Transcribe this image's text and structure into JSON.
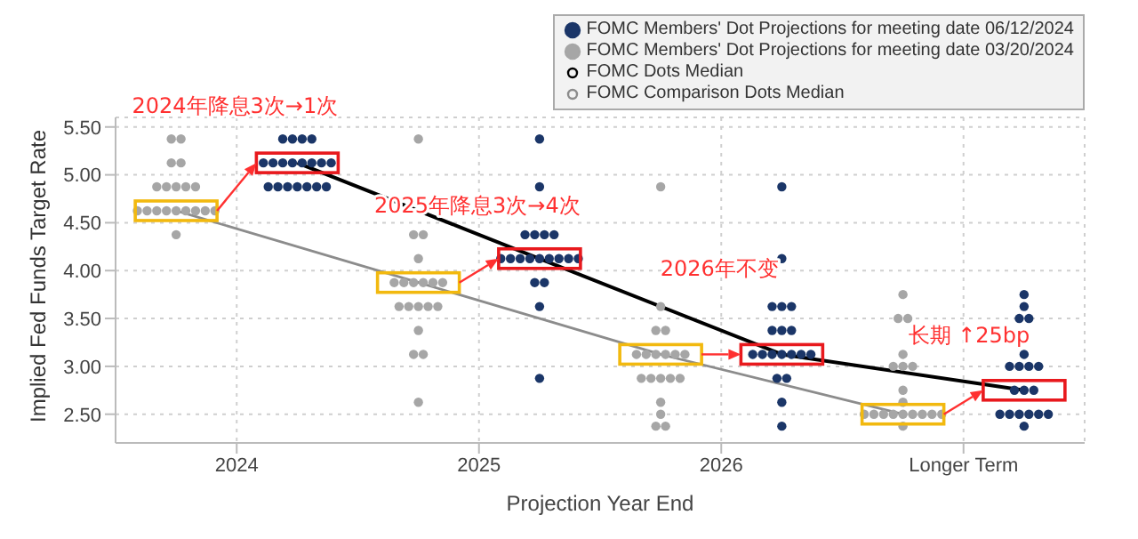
{
  "chart_data": {
    "type": "scatter",
    "xlabel": "Projection Year End",
    "ylabel": "Implied Fed Funds Target Rate",
    "xlim": [
      2023.5,
      2027.5
    ],
    "ylim": [
      2.2,
      5.6
    ],
    "xticks": [
      2024,
      2025,
      2026,
      {
        "value": 2027,
        "label": "Longer Term"
      }
    ],
    "yticks": [
      {
        "value": 2.5,
        "label": "2.50"
      },
      {
        "value": 3,
        "label": "3.00"
      },
      {
        "value": 3.5,
        "label": "3.50"
      },
      {
        "value": 4,
        "label": "4.00"
      },
      {
        "value": 4.5,
        "label": "4.50"
      },
      {
        "value": 5,
        "label": "5.00"
      },
      {
        "value": 5.5,
        "label": "5.50"
      }
    ],
    "grid": true,
    "legend": "top right",
    "marker": "circle",
    "annotations": [
      "2024年降息3次→1次",
      "2025年降息3次→4次",
      "2026年不变",
      "长期 ↑25bp"
    ],
    "series": [
      {
        "name": "FOMC Members' Dot Projections for meeting date 06/12/2024",
        "color": "#1b3668",
        "x": [
          2024.19,
          2024.23,
          2024.27,
          2024.31,
          2024.11,
          2024.15,
          2024.19,
          2024.23,
          2024.27,
          2024.31,
          2024.35,
          2024.39,
          2024.13,
          2024.17,
          2024.21,
          2024.25,
          2024.29,
          2024.33,
          2024.37,
          2025.25,
          2025.25,
          2025.19,
          2025.23,
          2025.27,
          2025.31,
          2025.09,
          2025.13,
          2025.17,
          2025.21,
          2025.25,
          2025.29,
          2025.33,
          2025.37,
          2025.41,
          2025.23,
          2025.27,
          2025.25,
          2025.25,
          2026.25,
          2026.25,
          2026.21,
          2026.25,
          2026.29,
          2026.21,
          2026.25,
          2026.29,
          2026.13,
          2026.17,
          2026.21,
          2026.25,
          2026.29,
          2026.33,
          2026.37,
          2026.23,
          2026.27,
          2026.25,
          2026.25,
          2027.25,
          2027.25,
          2027.23,
          2027.27,
          2027.25,
          2027.19,
          2027.23,
          2027.27,
          2027.31,
          2027.21,
          2027.25,
          2027.29,
          2027.15,
          2027.19,
          2027.23,
          2027.27,
          2027.31,
          2027.35,
          2027.25
        ],
        "values": [
          5.375,
          5.375,
          5.375,
          5.375,
          5.125,
          5.125,
          5.125,
          5.125,
          5.125,
          5.125,
          5.125,
          5.125,
          4.875,
          4.875,
          4.875,
          4.875,
          4.875,
          4.875,
          4.875,
          5.375,
          4.875,
          4.375,
          4.375,
          4.375,
          4.375,
          4.125,
          4.125,
          4.125,
          4.125,
          4.125,
          4.125,
          4.125,
          4.125,
          4.125,
          3.875,
          3.875,
          3.625,
          2.875,
          4.875,
          4.125,
          3.625,
          3.625,
          3.625,
          3.375,
          3.375,
          3.375,
          3.125,
          3.125,
          3.125,
          3.125,
          3.125,
          3.125,
          3.125,
          2.875,
          2.875,
          2.625,
          2.375,
          3.75,
          3.625,
          3.5,
          3.5,
          3.125,
          3,
          3,
          3,
          3,
          2.75,
          2.75,
          2.75,
          2.5,
          2.5,
          2.5,
          2.5,
          2.5,
          2.5,
          2.375
        ]
      },
      {
        "name": "FOMC Members' Dot Projections for meeting date 03/20/2024",
        "color": "#a6a6a6",
        "x": [
          2023.73,
          2023.77,
          2023.73,
          2023.77,
          2023.67,
          2023.71,
          2023.75,
          2023.79,
          2023.83,
          2023.59,
          2023.63,
          2023.67,
          2023.71,
          2023.75,
          2023.79,
          2023.83,
          2023.87,
          2023.91,
          2023.75,
          2024.75,
          2024.73,
          2024.77,
          2024.75,
          2024.65,
          2024.69,
          2024.73,
          2024.77,
          2024.81,
          2024.85,
          2024.67,
          2024.71,
          2024.75,
          2024.79,
          2024.83,
          2024.75,
          2024.73,
          2024.77,
          2024.75,
          2025.75,
          2025.75,
          2025.73,
          2025.77,
          2025.65,
          2025.69,
          2025.73,
          2025.77,
          2025.81,
          2025.85,
          2025.67,
          2025.71,
          2025.75,
          2025.79,
          2025.83,
          2025.75,
          2025.75,
          2025.73,
          2025.77,
          2026.75,
          2026.73,
          2026.77,
          2026.75,
          2026.71,
          2026.75,
          2026.79,
          2026.75,
          2026.75,
          2026.59,
          2026.63,
          2026.67,
          2026.71,
          2026.75,
          2026.79,
          2026.83,
          2026.87,
          2026.91,
          2026.75
        ],
        "values": [
          5.375,
          5.375,
          5.125,
          5.125,
          4.875,
          4.875,
          4.875,
          4.875,
          4.875,
          4.625,
          4.625,
          4.625,
          4.625,
          4.625,
          4.625,
          4.625,
          4.625,
          4.625,
          4.375,
          5.375,
          4.375,
          4.375,
          4.125,
          3.875,
          3.875,
          3.875,
          3.875,
          3.875,
          3.875,
          3.625,
          3.625,
          3.625,
          3.625,
          3.625,
          3.375,
          3.125,
          3.125,
          2.625,
          4.875,
          3.625,
          3.375,
          3.375,
          3.125,
          3.125,
          3.125,
          3.125,
          3.125,
          3.125,
          2.875,
          2.875,
          2.875,
          2.875,
          2.875,
          2.625,
          2.5,
          2.375,
          2.375,
          3.75,
          3.5,
          3.5,
          3.125,
          3,
          3,
          3,
          2.75,
          2.625,
          2.5,
          2.5,
          2.5,
          2.5,
          2.5,
          2.5,
          2.5,
          2.5,
          2.5,
          2.375
        ]
      },
      {
        "name": "FOMC Dots Median",
        "type": "line",
        "color": "#000000",
        "marker": "none",
        "line_style": "solid",
        "x": [
          2024.25,
          2025.25,
          2026.25,
          2027.25
        ],
        "values": [
          5.125,
          4.125,
          3.125,
          2.75
        ]
      },
      {
        "name": "FOMC Comparison Dots Median",
        "type": "line",
        "color": "#8c8c8c",
        "marker": "none",
        "line_style": "solid",
        "x": [
          2023.75,
          2024.75,
          2025.75,
          2026.75
        ],
        "values": [
          4.625,
          3.875,
          3.125,
          2.5
        ]
      }
    ]
  }
}
